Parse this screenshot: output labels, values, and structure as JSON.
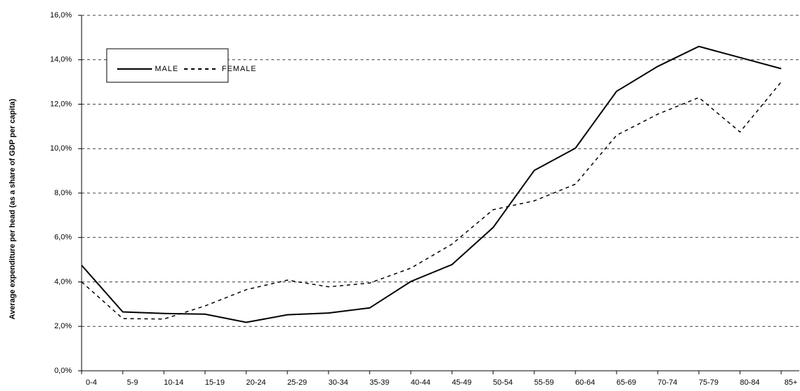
{
  "chart_data": {
    "type": "line",
    "y_label": "Average expenditure per head (as a share of GDP per capita)",
    "categories": [
      "0-4",
      "5-9",
      "10-14",
      "15-19",
      "20-24",
      "25-29",
      "30-34",
      "35-39",
      "40-44",
      "45-49",
      "50-54",
      "55-59",
      "60-64",
      "65-69",
      "70-74",
      "75-79",
      "80-84",
      "85+"
    ],
    "series": [
      {
        "name": "MALE",
        "color": "#000000",
        "style": "solid",
        "values": [
          4.75,
          2.65,
          2.58,
          2.55,
          2.18,
          2.52,
          2.6,
          2.83,
          4.02,
          4.78,
          6.45,
          9.02,
          10.02,
          12.58,
          13.7,
          14.6,
          14.1,
          13.6
        ]
      },
      {
        "name": "FEMALE",
        "color": "#000000",
        "style": "dashed",
        "values": [
          4.0,
          2.35,
          2.33,
          2.92,
          3.65,
          4.08,
          3.78,
          3.95,
          4.62,
          5.7,
          7.25,
          7.65,
          8.4,
          10.6,
          11.55,
          12.3,
          10.75,
          13.0
        ]
      }
    ],
    "ylim": [
      0,
      16
    ],
    "yticks": [
      {
        "value": 0,
        "label": "0,0%"
      },
      {
        "value": 2,
        "label": "2,0%"
      },
      {
        "value": 4,
        "label": "4,0%"
      },
      {
        "value": 6,
        "label": "6,0%"
      },
      {
        "value": 8,
        "label": "8,0%"
      },
      {
        "value": 10,
        "label": "10,0%"
      },
      {
        "value": 12,
        "label": "12,0%"
      },
      {
        "value": 14,
        "label": "14,0%"
      },
      {
        "value": 16,
        "label": "16,0%"
      }
    ],
    "grid": true,
    "legend": "upper left"
  }
}
